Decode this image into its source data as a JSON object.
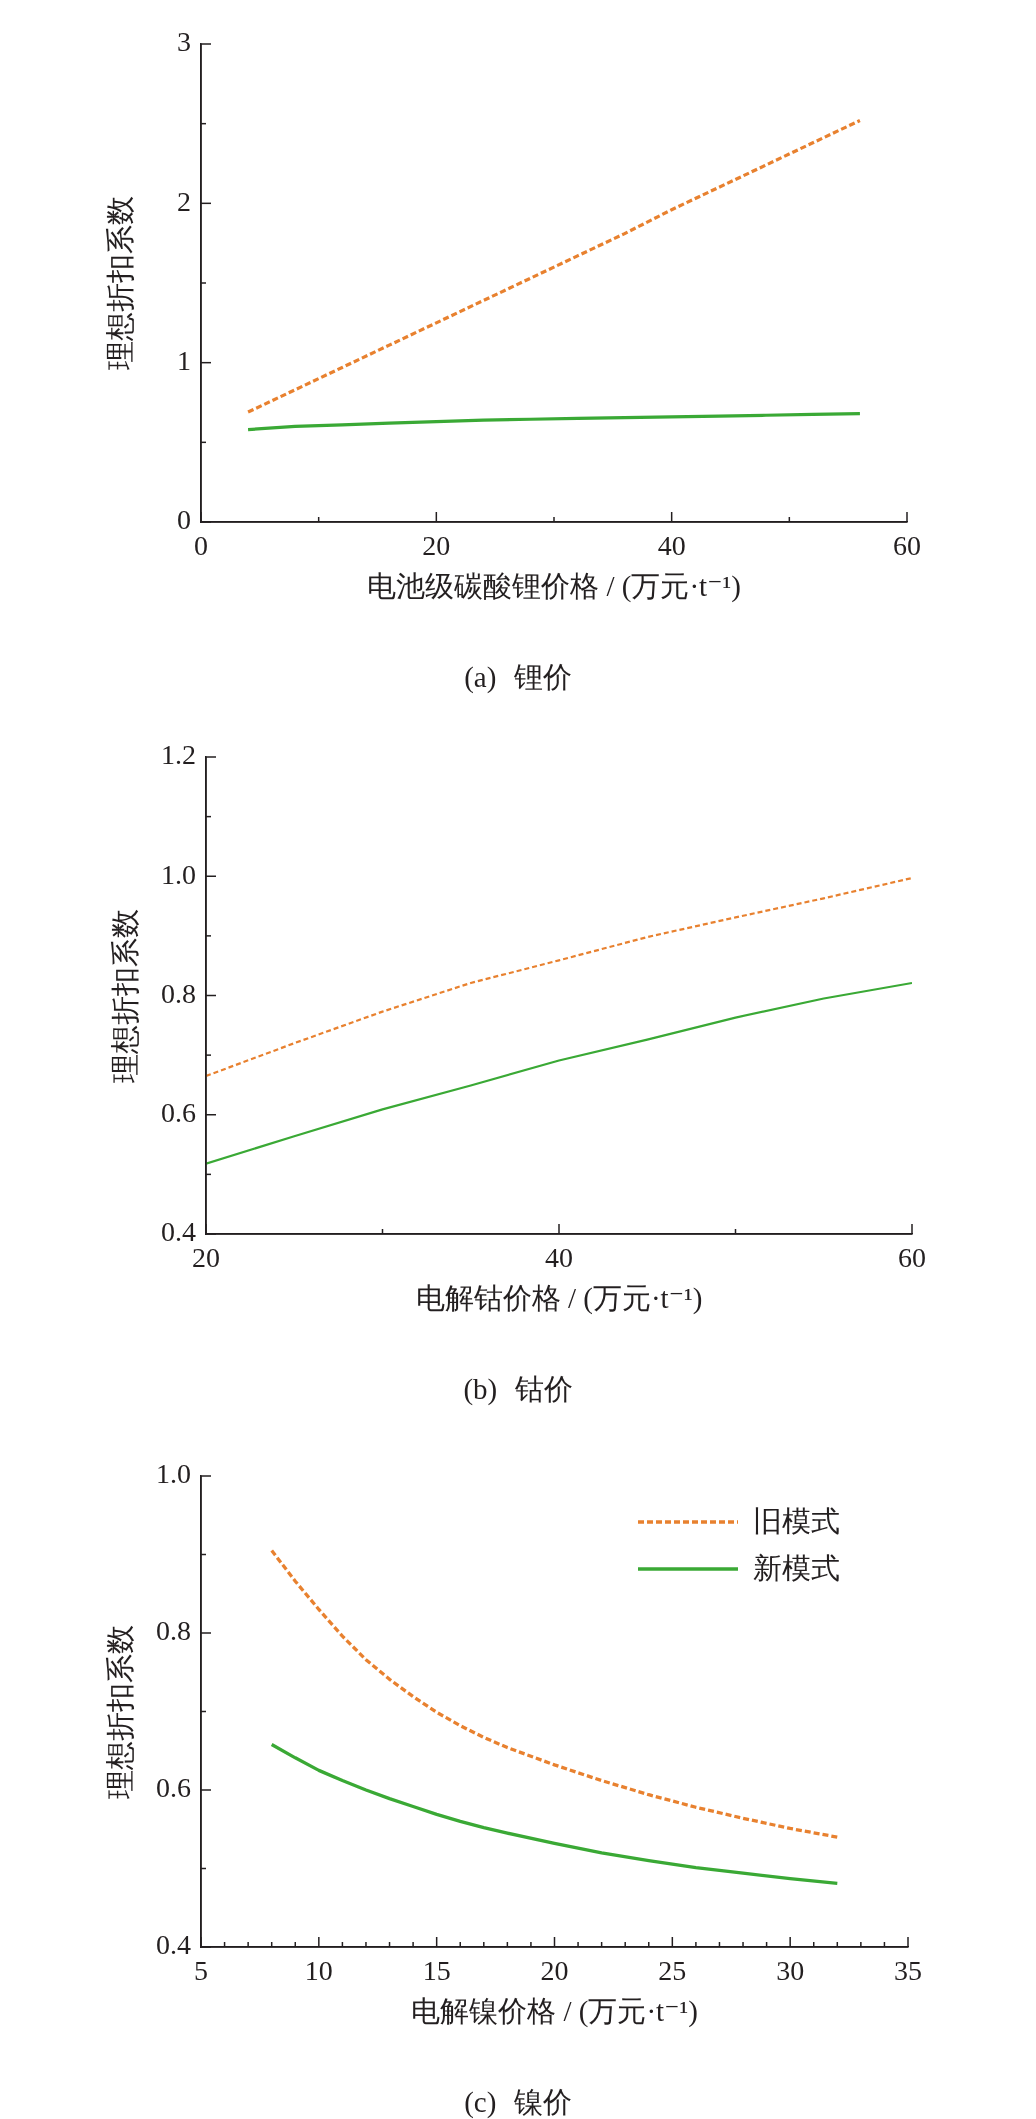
{
  "chart_data": [
    {
      "type": "line",
      "title": "(a) 锂价",
      "xlabel": "电池级碳酸锂价格 / (万元·t⁻¹)",
      "ylabel": "理想折扣系数",
      "x": [
        4,
        8,
        12,
        16,
        20,
        24,
        28,
        32,
        36,
        40,
        44,
        48,
        52,
        56
      ],
      "series": [
        {
          "color": "#e8812f",
          "line_style": "dashed",
          "values": [
            0.69,
            0.83,
            0.97,
            1.11,
            1.25,
            1.39,
            1.53,
            1.67,
            1.81,
            1.96,
            2.1,
            2.24,
            2.38,
            2.52
          ]
        },
        {
          "color": "#3aa935",
          "line_style": "solid",
          "values": [
            0.58,
            0.6,
            0.61,
            0.62,
            0.63,
            0.64,
            0.645,
            0.65,
            0.655,
            0.66,
            0.665,
            0.67,
            0.675,
            0.68
          ]
        }
      ],
      "xlim": [
        0,
        60
      ],
      "ylim": [
        0,
        3
      ],
      "xticks": [
        0,
        {
          "value": 10,
          "label": null
        },
        20,
        {
          "value": 30,
          "label": null
        },
        40,
        {
          "value": 50,
          "label": null
        },
        60
      ],
      "yticks": [
        0,
        {
          "value": 0.5,
          "label": null
        },
        1,
        {
          "value": 1.5,
          "label": null
        },
        2,
        {
          "value": 2.5,
          "label": null
        },
        3
      ]
    },
    {
      "type": "line",
      "title": "(b) 钴价",
      "xlabel": "电解钴价格 / (万元·t⁻¹)",
      "ylabel": "理想折扣系数",
      "x": [
        20,
        25,
        30,
        35,
        40,
        45,
        50,
        55,
        60
      ],
      "series": [
        {
          "color": "#e8812f",
          "line_style": "dashed",
          "values": [
            0.665,
            0.72,
            0.773,
            0.821,
            0.859,
            0.898,
            0.931,
            0.963,
            0.997
          ]
        },
        {
          "color": "#3aa935",
          "line_style": "solid",
          "values": [
            0.518,
            0.564,
            0.609,
            0.649,
            0.691,
            0.726,
            0.763,
            0.795,
            0.821
          ]
        }
      ],
      "xlim": [
        20,
        60
      ],
      "ylim": [
        0.4,
        1.2
      ],
      "xticks": [
        20,
        {
          "value": 30,
          "label": null
        },
        40,
        {
          "value": 50,
          "label": null
        },
        60
      ],
      "yticks": [
        0.4,
        {
          "value": 0.5,
          "label": null
        },
        0.6,
        {
          "value": 0.7,
          "label": null
        },
        0.8,
        {
          "value": 0.9,
          "label": null
        },
        {
          "value": 1,
          "label": "1.0"
        },
        {
          "value": 1.1,
          "label": null
        },
        1.2
      ]
    },
    {
      "type": "line",
      "title": "(c) 镍价",
      "xlabel": "电解镍价格 / (万元·t⁻¹)",
      "ylabel": "理想折扣系数",
      "x": [
        8,
        9,
        10,
        11,
        12,
        13,
        14,
        15,
        16,
        17,
        18,
        20,
        22,
        24,
        26,
        28,
        30,
        32
      ],
      "series": [
        {
          "name": "旧模式",
          "color": "#e8812f",
          "line_style": "dashed",
          "values": [
            0.905,
            0.866,
            0.83,
            0.796,
            0.766,
            0.741,
            0.719,
            0.699,
            0.682,
            0.667,
            0.654,
            0.632,
            0.612,
            0.594,
            0.578,
            0.564,
            0.551,
            0.54
          ]
        },
        {
          "name": "新模式",
          "color": "#3aa935",
          "line_style": "solid",
          "values": [
            0.658,
            0.641,
            0.625,
            0.612,
            0.6,
            0.589,
            0.579,
            0.569,
            0.56,
            0.552,
            0.545,
            0.532,
            0.52,
            0.51,
            0.501,
            0.494,
            0.487,
            0.481
          ]
        }
      ],
      "xlim": [
        5,
        35
      ],
      "ylim": [
        0.4,
        1
      ],
      "xticks": [
        5,
        {
          "value": 6,
          "label": null
        },
        {
          "value": 7,
          "label": null
        },
        {
          "value": 8,
          "label": null
        },
        {
          "value": 9,
          "label": null
        },
        10,
        {
          "value": 11,
          "label": null
        },
        {
          "value": 12,
          "label": null
        },
        {
          "value": 13,
          "label": null
        },
        {
          "value": 14,
          "label": null
        },
        15,
        {
          "value": 16,
          "label": null
        },
        {
          "value": 17,
          "label": null
        },
        {
          "value": 18,
          "label": null
        },
        {
          "value": 19,
          "label": null
        },
        20,
        {
          "value": 21,
          "label": null
        },
        {
          "value": 22,
          "label": null
        },
        {
          "value": 23,
          "label": null
        },
        {
          "value": 24,
          "label": null
        },
        25,
        {
          "value": 26,
          "label": null
        },
        {
          "value": 27,
          "label": null
        },
        {
          "value": 28,
          "label": null
        },
        {
          "value": 29,
          "label": null
        },
        30,
        {
          "value": 31,
          "label": null
        },
        {
          "value": 32,
          "label": null
        },
        {
          "value": 33,
          "label": null
        },
        {
          "value": 34,
          "label": null
        },
        35
      ],
      "yticks": [
        0.4,
        {
          "value": 0.5,
          "label": null
        },
        0.6,
        {
          "value": 0.7,
          "label": null
        },
        0.8,
        {
          "value": 0.9,
          "label": null
        },
        {
          "value": 1,
          "label": "1.0"
        }
      ],
      "legend": "top right"
    }
  ]
}
